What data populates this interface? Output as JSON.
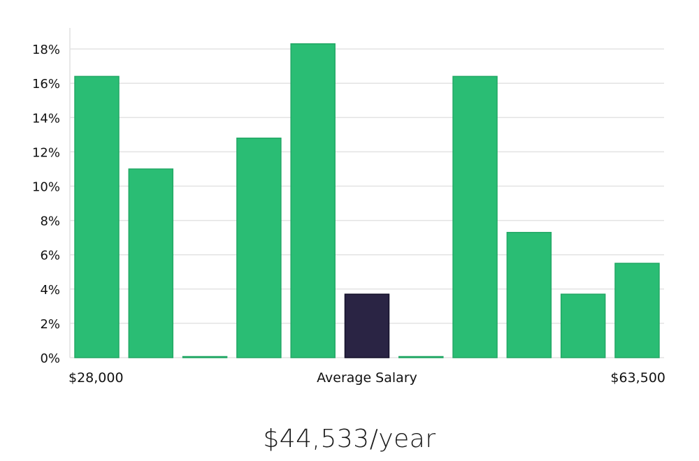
{
  "chart_data": {
    "type": "bar",
    "title": "",
    "xlabel": "Average Salary",
    "ylabel": "",
    "x_start_label": "$28,000",
    "x_end_label": "$63,500",
    "ylim": [
      0,
      19
    ],
    "yticks": [
      0,
      2,
      4,
      6,
      8,
      10,
      12,
      14,
      16,
      18
    ],
    "ytick_labels": [
      "0%",
      "2%",
      "4%",
      "6%",
      "8%",
      "10%",
      "12%",
      "14%",
      "16%",
      "18%"
    ],
    "values": [
      16.4,
      11.0,
      0.0,
      12.8,
      18.3,
      3.7,
      0.0,
      16.4,
      7.3,
      3.7,
      5.5
    ],
    "highlight_index": 5,
    "grid": true,
    "colors": {
      "bar": "#2abd74",
      "bar_border": "#22a865",
      "highlight": "#2a2444",
      "highlight_border": "#15112a"
    }
  },
  "salary_caption": "$44,533/year"
}
